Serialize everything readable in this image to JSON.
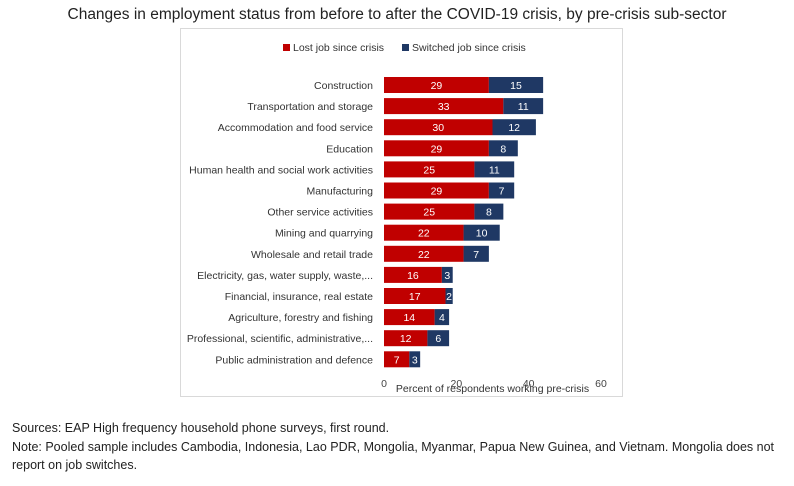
{
  "chart_data": {
    "type": "bar",
    "orientation": "horizontal",
    "stacked": true,
    "title": "Changes in employment status from before to after the COVID-19 crisis, by pre-crisis sub-sector",
    "xlabel": "Percent of respondents working pre-crisis",
    "ylabel": "",
    "xlim": [
      0,
      60
    ],
    "xticks": [
      0,
      20,
      40,
      60
    ],
    "legend_position": "top",
    "categories": [
      "Construction",
      "Transportation and storage",
      "Accommodation and food service",
      "Education",
      "Human health and social work activities",
      "Manufacturing",
      "Other service activities",
      "Mining and quarrying",
      "Wholesale and retail trade",
      "Electricity, gas, water supply, waste,...",
      "Financial, insurance, real estate",
      "Agriculture, forestry and fishing",
      "Professional, scientific, administrative,...",
      "Public administration and defence"
    ],
    "series": [
      {
        "name": "Lost job since crisis",
        "color": "#C00000",
        "values": [
          29,
          33,
          30,
          29,
          25,
          29,
          25,
          22,
          22,
          16,
          17,
          14,
          12,
          7
        ]
      },
      {
        "name": "Switched job since crisis",
        "color": "#1F3864",
        "values": [
          15,
          11,
          12,
          8,
          11,
          7,
          8,
          10,
          7,
          3,
          2,
          4,
          6,
          3
        ]
      }
    ]
  },
  "footnotes": {
    "sources": "Sources: EAP High frequency household phone surveys, first round.",
    "note": "Note: Pooled sample includes Cambodia, Indonesia, Lao PDR, Mongolia, Myanmar, Papua New Guinea, and Vietnam.  Mongolia does not report on job switches."
  }
}
